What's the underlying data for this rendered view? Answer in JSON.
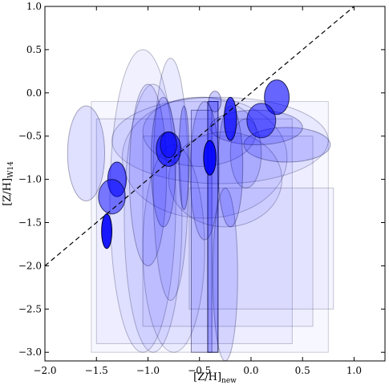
{
  "chart_data": {
    "type": "scatter",
    "title": "",
    "xlabel": "[Z/H]",
    "xlabel_sub": "new",
    "ylabel": "[Z/H]",
    "ylabel_sub": "W14",
    "xlim": [
      -2.0,
      1.3
    ],
    "ylim": [
      -3.1,
      1.0
    ],
    "xticks": [
      -2.0,
      -1.5,
      -1.0,
      -0.5,
      0.0,
      0.5,
      1.0
    ],
    "yticks": [
      -3.0,
      -2.5,
      -2.0,
      -1.5,
      -1.0,
      -0.5,
      0.0,
      0.5,
      1.0
    ],
    "xtick_labels": [
      "−2.0",
      "−1.5",
      "−1.0",
      "−0.5",
      "0.0",
      "0.5",
      "1.0"
    ],
    "ytick_labels": [
      "−3.0",
      "−2.5",
      "−2.0",
      "−1.5",
      "−1.0",
      "−0.5",
      "0.0",
      "0.5",
      "1.0"
    ],
    "one_to_one_line": {
      "x": [
        -2.0,
        1.0
      ],
      "y": [
        -2.0,
        1.0
      ],
      "style": "dashed"
    },
    "colors": {
      "fill": "#0000ff",
      "edge": "#000033",
      "line": "#000000"
    },
    "rectangles": [
      {
        "x0": -1.55,
        "x1": 0.75,
        "y0": -3.0,
        "y1": -0.1,
        "alpha": 0.03
      },
      {
        "x0": -1.5,
        "x1": 0.4,
        "y0": -2.9,
        "y1": -0.3,
        "alpha": 0.04
      },
      {
        "x0": -1.05,
        "x1": 0.6,
        "y0": -2.7,
        "y1": -0.5,
        "alpha": 0.04
      },
      {
        "x0": -0.6,
        "x1": 0.8,
        "y0": -2.5,
        "y1": -1.1,
        "alpha": 0.04
      },
      {
        "x0": -0.58,
        "x1": -0.38,
        "y0": -3.0,
        "y1": -0.2,
        "alpha": 0.12
      },
      {
        "x0": -0.42,
        "x1": -0.32,
        "y0": -3.0,
        "y1": -0.1,
        "alpha": 0.25
      }
    ],
    "ellipses": [
      {
        "x": -0.45,
        "y": -0.75,
        "rx": 0.8,
        "ry": 0.7,
        "alpha": 0.05
      },
      {
        "x": -0.3,
        "y": -0.55,
        "rx": 1.05,
        "ry": 0.5,
        "alpha": 0.06
      },
      {
        "x": -0.5,
        "y": -0.45,
        "rx": 0.55,
        "ry": 0.4,
        "alpha": 0.08
      },
      {
        "x": -0.25,
        "y": -1.0,
        "rx": 0.55,
        "ry": 0.55,
        "alpha": 0.06
      },
      {
        "x": 0.35,
        "y": -0.6,
        "rx": 0.42,
        "ry": 0.2,
        "alpha": 0.15
      },
      {
        "x": 0.05,
        "y": -0.4,
        "rx": 0.45,
        "ry": 0.2,
        "alpha": 0.15
      },
      {
        "x": -1.6,
        "y": -0.7,
        "rx": 0.18,
        "ry": 0.55,
        "alpha": 0.12
      },
      {
        "x": -0.05,
        "y": -0.7,
        "rx": 0.15,
        "ry": 0.4,
        "alpha": 0.1
      },
      {
        "x": -1.05,
        "y": -1.25,
        "rx": 0.32,
        "ry": 1.75,
        "alpha": 0.06
      },
      {
        "x": -0.95,
        "y": -1.45,
        "rx": 0.28,
        "ry": 1.55,
        "alpha": 0.06
      },
      {
        "x": -0.75,
        "y": -1.8,
        "rx": 0.3,
        "ry": 1.2,
        "alpha": 0.05
      },
      {
        "x": -1.0,
        "y": -0.95,
        "rx": 0.18,
        "ry": 1.05,
        "alpha": 0.1
      },
      {
        "x": -0.85,
        "y": -0.8,
        "rx": 0.12,
        "ry": 0.75,
        "alpha": 0.15
      },
      {
        "x": -0.78,
        "y": -1.0,
        "rx": 0.17,
        "ry": 1.4,
        "alpha": 0.08
      },
      {
        "x": -0.65,
        "y": -0.75,
        "rx": 0.05,
        "ry": 0.6,
        "alpha": 0.2
      },
      {
        "x": -0.45,
        "y": -0.9,
        "rx": 0.14,
        "ry": 0.8,
        "alpha": 0.12
      },
      {
        "x": -0.25,
        "y": -2.1,
        "rx": 0.12,
        "ry": 1.0,
        "alpha": 0.1
      },
      {
        "x": -0.2,
        "y": -0.85,
        "rx": 0.12,
        "ry": 0.7,
        "alpha": 0.15
      },
      {
        "x": -0.2,
        "y": -0.3,
        "rx": 0.06,
        "ry": 0.25,
        "alpha": 0.7
      },
      {
        "x": -0.4,
        "y": -0.75,
        "rx": 0.06,
        "ry": 0.2,
        "alpha": 0.9
      },
      {
        "x": -0.8,
        "y": -0.65,
        "rx": 0.12,
        "ry": 0.2,
        "alpha": 0.6
      },
      {
        "x": -0.8,
        "y": -0.6,
        "rx": 0.08,
        "ry": 0.15,
        "alpha": 0.5
      },
      {
        "x": 0.25,
        "y": -0.05,
        "rx": 0.12,
        "ry": 0.2,
        "alpha": 0.6
      },
      {
        "x": 0.1,
        "y": -0.32,
        "rx": 0.14,
        "ry": 0.2,
        "alpha": 0.5
      },
      {
        "x": -1.3,
        "y": -1.0,
        "rx": 0.09,
        "ry": 0.2,
        "alpha": 0.6
      },
      {
        "x": -1.35,
        "y": -1.2,
        "rx": 0.13,
        "ry": 0.2,
        "alpha": 0.5
      },
      {
        "x": -1.4,
        "y": -1.6,
        "rx": 0.05,
        "ry": 0.2,
        "alpha": 0.9
      },
      {
        "x": -0.35,
        "y": -0.1,
        "rx": 0.06,
        "ry": 0.12,
        "alpha": 0.2
      }
    ]
  }
}
